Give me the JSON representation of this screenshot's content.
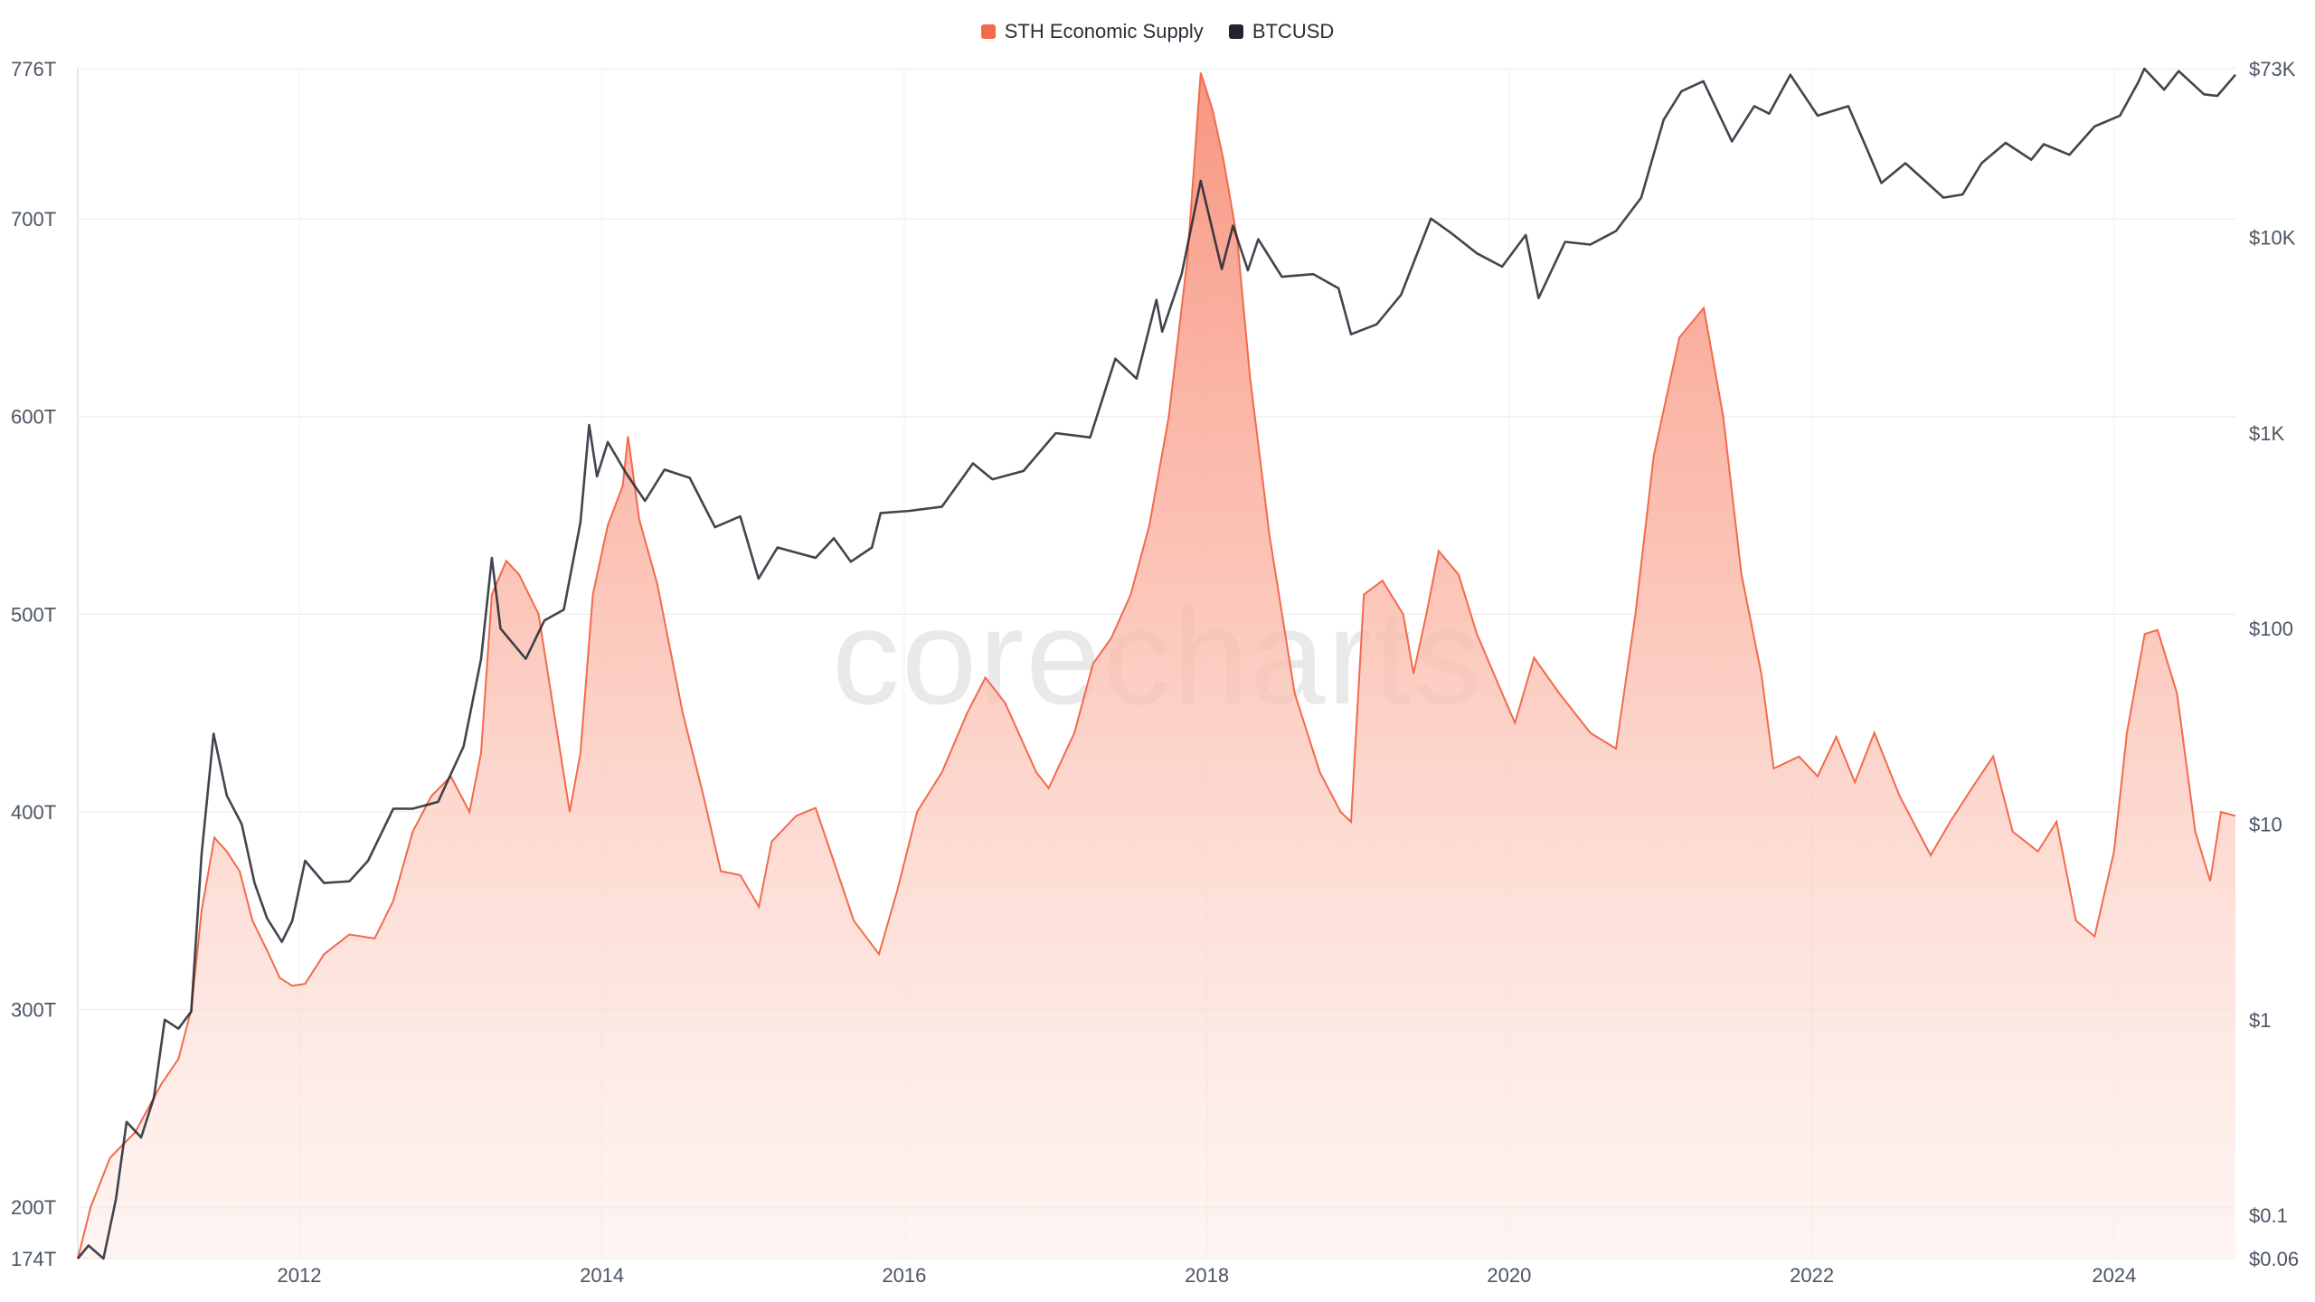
{
  "watermark": "corecharts",
  "legend": [
    {
      "name": "STH Economic Supply",
      "color": "#f26a4b"
    },
    {
      "name": "BTCUSD",
      "color": "#1f2430"
    }
  ],
  "chart_data": {
    "type": "area",
    "xlim": [
      "2010-07-15",
      "2024-10-20"
    ],
    "x_ticks": [
      "2012",
      "2014",
      "2016",
      "2018",
      "2020",
      "2022",
      "2024"
    ],
    "y_left": {
      "range": [
        174,
        776
      ],
      "unit": "T",
      "ticks": [
        {
          "value": 174,
          "label": "174T"
        },
        {
          "value": 200,
          "label": "200T"
        },
        {
          "value": 300,
          "label": "300T"
        },
        {
          "value": 400,
          "label": "400T"
        },
        {
          "value": 500,
          "label": "500T"
        },
        {
          "value": 600,
          "label": "600T"
        },
        {
          "value": 700,
          "label": "700T"
        },
        {
          "value": 776,
          "label": "776T"
        }
      ]
    },
    "y_right": {
      "scale": "log",
      "range": [
        0.06,
        73000
      ],
      "ticks": [
        {
          "value": 0.06,
          "label": "$0.06"
        },
        {
          "value": 0.1,
          "label": "$0.1"
        },
        {
          "value": 1,
          "label": "$1"
        },
        {
          "value": 10,
          "label": "$10"
        },
        {
          "value": 100,
          "label": "$100"
        },
        {
          "value": 1000,
          "label": "$1K"
        },
        {
          "value": 10000,
          "label": "$10K"
        },
        {
          "value": 73000,
          "label": "$73K"
        }
      ]
    },
    "grid": true,
    "legend_position": "top-center",
    "series": [
      {
        "name": "STH Economic Supply",
        "axis": "left",
        "type": "area",
        "color": "#f26a4b",
        "points": [
          [
            "2010-07-15",
            174
          ],
          [
            "2010-08-15",
            200
          ],
          [
            "2010-10-01",
            225
          ],
          [
            "2010-12-01",
            238
          ],
          [
            "2011-02-01",
            262
          ],
          [
            "2011-03-15",
            275
          ],
          [
            "2011-04-15",
            300
          ],
          [
            "2011-05-10",
            350
          ],
          [
            "2011-06-10",
            387
          ],
          [
            "2011-07-10",
            380
          ],
          [
            "2011-08-10",
            370
          ],
          [
            "2011-09-10",
            345
          ],
          [
            "2011-10-15",
            330
          ],
          [
            "2011-11-15",
            316
          ],
          [
            "2011-12-15",
            312
          ],
          [
            "2012-01-15",
            313
          ],
          [
            "2012-03-01",
            328
          ],
          [
            "2012-05-01",
            338
          ],
          [
            "2012-07-01",
            336
          ],
          [
            "2012-08-15",
            355
          ],
          [
            "2012-10-01",
            390
          ],
          [
            "2012-11-15",
            408
          ],
          [
            "2013-01-01",
            418
          ],
          [
            "2013-02-15",
            400
          ],
          [
            "2013-03-15",
            430
          ],
          [
            "2013-04-10",
            510
          ],
          [
            "2013-05-15",
            527
          ],
          [
            "2013-06-15",
            520
          ],
          [
            "2013-08-01",
            500
          ],
          [
            "2013-09-15",
            440
          ],
          [
            "2013-10-15",
            400
          ],
          [
            "2013-11-10",
            430
          ],
          [
            "2013-12-10",
            510
          ],
          [
            "2014-01-15",
            545
          ],
          [
            "2014-02-20",
            565
          ],
          [
            "2014-03-05",
            590
          ],
          [
            "2014-04-01",
            548
          ],
          [
            "2014-05-15",
            515
          ],
          [
            "2014-07-15",
            450
          ],
          [
            "2014-09-01",
            410
          ],
          [
            "2014-10-15",
            370
          ],
          [
            "2014-12-01",
            368
          ],
          [
            "2015-01-15",
            352
          ],
          [
            "2015-02-15",
            385
          ],
          [
            "2015-04-15",
            398
          ],
          [
            "2015-06-01",
            402
          ],
          [
            "2015-07-10",
            378
          ],
          [
            "2015-09-01",
            345
          ],
          [
            "2015-11-01",
            328
          ],
          [
            "2015-12-15",
            360
          ],
          [
            "2016-02-01",
            400
          ],
          [
            "2016-04-01",
            420
          ],
          [
            "2016-06-01",
            450
          ],
          [
            "2016-07-15",
            468
          ],
          [
            "2016-09-01",
            455
          ],
          [
            "2016-11-15",
            420
          ],
          [
            "2016-12-15",
            412
          ],
          [
            "2017-02-15",
            440
          ],
          [
            "2017-04-01",
            475
          ],
          [
            "2017-05-15",
            488
          ],
          [
            "2017-07-01",
            510
          ],
          [
            "2017-08-15",
            545
          ],
          [
            "2017-10-01",
            600
          ],
          [
            "2017-11-15",
            680
          ],
          [
            "2017-12-17",
            774
          ],
          [
            "2018-01-15",
            755
          ],
          [
            "2018-02-10",
            730
          ],
          [
            "2018-03-15",
            690
          ],
          [
            "2018-04-15",
            620
          ],
          [
            "2018-06-01",
            540
          ],
          [
            "2018-08-01",
            460
          ],
          [
            "2018-10-01",
            420
          ],
          [
            "2018-11-20",
            400
          ],
          [
            "2018-12-15",
            395
          ],
          [
            "2019-01-15",
            510
          ],
          [
            "2019-03-01",
            517
          ],
          [
            "2019-04-20",
            500
          ],
          [
            "2019-05-15",
            470
          ],
          [
            "2019-06-15",
            500
          ],
          [
            "2019-07-15",
            532
          ],
          [
            "2019-09-01",
            520
          ],
          [
            "2019-10-15",
            490
          ],
          [
            "2019-12-15",
            460
          ],
          [
            "2020-01-15",
            445
          ],
          [
            "2020-03-01",
            478
          ],
          [
            "2020-05-01",
            460
          ],
          [
            "2020-07-15",
            440
          ],
          [
            "2020-09-15",
            432
          ],
          [
            "2020-11-01",
            500
          ],
          [
            "2020-12-15",
            580
          ],
          [
            "2021-02-15",
            640
          ],
          [
            "2021-04-15",
            655
          ],
          [
            "2021-06-01",
            600
          ],
          [
            "2021-07-15",
            520
          ],
          [
            "2021-09-01",
            470
          ],
          [
            "2021-10-01",
            422
          ],
          [
            "2021-12-01",
            428
          ],
          [
            "2022-01-15",
            418
          ],
          [
            "2022-03-01",
            438
          ],
          [
            "2022-04-15",
            415
          ],
          [
            "2022-06-01",
            440
          ],
          [
            "2022-08-01",
            408
          ],
          [
            "2022-10-15",
            378
          ],
          [
            "2022-12-01",
            395
          ],
          [
            "2023-02-01",
            415
          ],
          [
            "2023-03-15",
            428
          ],
          [
            "2023-05-01",
            390
          ],
          [
            "2023-07-01",
            380
          ],
          [
            "2023-08-15",
            395
          ],
          [
            "2023-10-01",
            345
          ],
          [
            "2023-11-15",
            337
          ],
          [
            "2024-01-01",
            380
          ],
          [
            "2024-02-01",
            440
          ],
          [
            "2024-03-15",
            490
          ],
          [
            "2024-04-15",
            492
          ],
          [
            "2024-06-01",
            460
          ],
          [
            "2024-07-15",
            390
          ],
          [
            "2024-08-20",
            365
          ],
          [
            "2024-09-15",
            400
          ],
          [
            "2024-10-20",
            398
          ]
        ]
      },
      {
        "name": "BTCUSD",
        "axis": "right",
        "type": "line",
        "color": "#1f2430",
        "points": [
          [
            "2010-07-15",
            0.06
          ],
          [
            "2010-08-10",
            0.07
          ],
          [
            "2010-09-15",
            0.06
          ],
          [
            "2010-10-15",
            0.12
          ],
          [
            "2010-11-10",
            0.3
          ],
          [
            "2010-12-15",
            0.25
          ],
          [
            "2011-01-15",
            0.4
          ],
          [
            "2011-02-10",
            1.0
          ],
          [
            "2011-03-15",
            0.9
          ],
          [
            "2011-04-15",
            1.1
          ],
          [
            "2011-05-10",
            7
          ],
          [
            "2011-06-08",
            29
          ],
          [
            "2011-07-10",
            14
          ],
          [
            "2011-08-15",
            10
          ],
          [
            "2011-09-15",
            5
          ],
          [
            "2011-10-15",
            3.3
          ],
          [
            "2011-11-20",
            2.5
          ],
          [
            "2011-12-15",
            3.2
          ],
          [
            "2012-01-15",
            6.5
          ],
          [
            "2012-03-01",
            5
          ],
          [
            "2012-05-01",
            5.1
          ],
          [
            "2012-06-15",
            6.5
          ],
          [
            "2012-08-15",
            12
          ],
          [
            "2012-10-01",
            12
          ],
          [
            "2012-12-01",
            13
          ],
          [
            "2013-02-01",
            25
          ],
          [
            "2013-03-15",
            70
          ],
          [
            "2013-04-10",
            230
          ],
          [
            "2013-05-01",
            100
          ],
          [
            "2013-07-01",
            70
          ],
          [
            "2013-08-15",
            110
          ],
          [
            "2013-10-01",
            125
          ],
          [
            "2013-11-10",
            350
          ],
          [
            "2013-12-01",
            1100
          ],
          [
            "2013-12-20",
            600
          ],
          [
            "2014-01-15",
            900
          ],
          [
            "2014-03-01",
            620
          ],
          [
            "2014-04-15",
            450
          ],
          [
            "2014-06-01",
            650
          ],
          [
            "2014-08-01",
            590
          ],
          [
            "2014-10-01",
            330
          ],
          [
            "2014-12-01",
            375
          ],
          [
            "2015-01-14",
            180
          ],
          [
            "2015-03-01",
            260
          ],
          [
            "2015-06-01",
            230
          ],
          [
            "2015-07-15",
            290
          ],
          [
            "2015-08-25",
            220
          ],
          [
            "2015-10-15",
            260
          ],
          [
            "2015-11-05",
            390
          ],
          [
            "2016-01-15",
            400
          ],
          [
            "2016-04-01",
            420
          ],
          [
            "2016-06-15",
            700
          ],
          [
            "2016-08-01",
            580
          ],
          [
            "2016-10-15",
            640
          ],
          [
            "2017-01-01",
            1000
          ],
          [
            "2017-03-25",
            950
          ],
          [
            "2017-05-25",
            2400
          ],
          [
            "2017-07-15",
            1900
          ],
          [
            "2017-09-01",
            4800
          ],
          [
            "2017-09-15",
            3300
          ],
          [
            "2017-11-01",
            6500
          ],
          [
            "2017-12-17",
            19500
          ],
          [
            "2018-02-06",
            6900
          ],
          [
            "2018-03-05",
            11500
          ],
          [
            "2018-04-10",
            6800
          ],
          [
            "2018-05-05",
            9800
          ],
          [
            "2018-07-01",
            6300
          ],
          [
            "2018-09-15",
            6500
          ],
          [
            "2018-11-15",
            5500
          ],
          [
            "2018-12-15",
            3200
          ],
          [
            "2019-02-15",
            3600
          ],
          [
            "2019-04-15",
            5100
          ],
          [
            "2019-06-26",
            12500
          ],
          [
            "2019-08-15",
            10500
          ],
          [
            "2019-10-15",
            8300
          ],
          [
            "2019-12-15",
            7100
          ],
          [
            "2020-02-10",
            10300
          ],
          [
            "2020-03-12",
            4900
          ],
          [
            "2020-05-15",
            9500
          ],
          [
            "2020-07-15",
            9200
          ],
          [
            "2020-09-15",
            10800
          ],
          [
            "2020-11-15",
            16000
          ],
          [
            "2021-01-08",
            40000
          ],
          [
            "2021-02-20",
            56000
          ],
          [
            "2021-04-14",
            63000
          ],
          [
            "2021-06-22",
            31000
          ],
          [
            "2021-08-15",
            47000
          ],
          [
            "2021-09-20",
            43000
          ],
          [
            "2021-11-10",
            68000
          ],
          [
            "2022-01-15",
            42000
          ],
          [
            "2022-03-30",
            47000
          ],
          [
            "2022-05-12",
            29000
          ],
          [
            "2022-06-18",
            19000
          ],
          [
            "2022-08-15",
            24000
          ],
          [
            "2022-11-15",
            16000
          ],
          [
            "2022-12-31",
            16600
          ],
          [
            "2023-02-15",
            24000
          ],
          [
            "2023-04-14",
            30500
          ],
          [
            "2023-06-15",
            25000
          ],
          [
            "2023-07-15",
            30000
          ],
          [
            "2023-09-15",
            26500
          ],
          [
            "2023-11-15",
            37000
          ],
          [
            "2024-01-15",
            42000
          ],
          [
            "2024-02-28",
            62000
          ],
          [
            "2024-03-14",
            73000
          ],
          [
            "2024-05-01",
            57000
          ],
          [
            "2024-06-05",
            71000
          ],
          [
            "2024-08-05",
            54000
          ],
          [
            "2024-09-06",
            53000
          ],
          [
            "2024-10-20",
            68000
          ]
        ]
      }
    ]
  }
}
